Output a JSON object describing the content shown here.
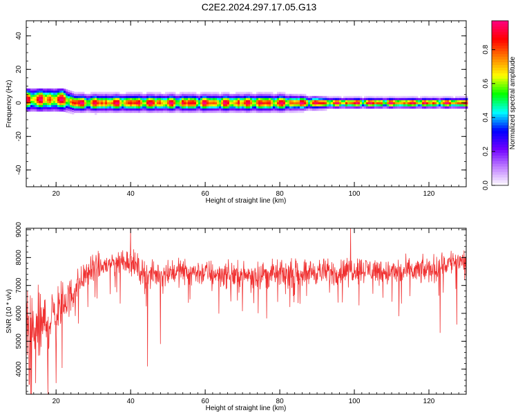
{
  "title": "C2E2.2024.297.17.05.G13",
  "chart_data": [
    {
      "type": "heatmap",
      "xlabel": "Height of straight line (km)",
      "ylabel": "Frequency (Hz)",
      "xlim": [
        12,
        130
      ],
      "ylim": [
        -50,
        49
      ],
      "xticks": [
        20,
        40,
        60,
        80,
        100,
        120
      ],
      "yticks": [
        -40,
        -20,
        0,
        20,
        40
      ],
      "colorbar": {
        "label": "Normalized spectral amplitude",
        "range": [
          0,
          0.97
        ],
        "ticks": [
          "0.0",
          "0.2",
          "0.4",
          "0.6",
          "0.8"
        ],
        "colors": [
          "#ffffff",
          "#c080ff",
          "#7000ff",
          "#0000ff",
          "#00ffff",
          "#00ff00",
          "#ffff00",
          "#ff8000",
          "#ff0000",
          "#ff0080"
        ]
      },
      "ridge": {
        "frequency_hz": [
          [
            12,
            2
          ],
          [
            22,
            2
          ],
          [
            25,
            0
          ],
          [
            130,
            0
          ]
        ],
        "bandwidth_hz": [
          [
            12,
            3.5
          ],
          [
            22,
            3.5
          ],
          [
            25,
            2.5
          ],
          [
            80,
            2.5
          ],
          [
            95,
            1.5
          ],
          [
            130,
            1.5
          ]
        ],
        "peak_amplitude": 0.97
      },
      "grid": false
    },
    {
      "type": "line",
      "xlabel": "Height of straight line (km)",
      "ylabel": "SNR (10 * v/v)",
      "xlim": [
        12,
        130
      ],
      "ylim": [
        3100,
        9050
      ],
      "xticks": [
        20,
        40,
        60,
        80,
        100,
        120
      ],
      "yticks": [
        4000,
        5000,
        6000,
        7000,
        8000,
        9000
      ],
      "series": [
        {
          "color": "#f03030",
          "x": [
            12,
            14,
            16,
            18,
            20,
            21,
            22,
            24,
            26,
            28,
            30,
            32,
            35,
            38,
            40,
            42,
            45,
            48,
            50,
            55,
            60,
            65,
            70,
            75,
            80,
            85,
            90,
            95,
            100,
            105,
            110,
            115,
            120,
            125,
            128,
            130
          ],
          "mean": [
            5400,
            5200,
            5500,
            5700,
            6000,
            6200,
            6400,
            6600,
            7100,
            7400,
            7600,
            7650,
            7800,
            7900,
            7900,
            7600,
            7350,
            7400,
            7500,
            7500,
            7450,
            7400,
            7350,
            7400,
            7400,
            7450,
            7500,
            7450,
            7600,
            7550,
            7450,
            7500,
            7550,
            7800,
            7900,
            7900
          ],
          "spread": [
            1100,
            1300,
            1200,
            1100,
            900,
            850,
            700,
            600,
            500,
            450,
            430,
            420,
            430,
            430,
            430,
            420,
            420,
            420,
            420,
            420,
            420,
            420,
            420,
            420,
            420,
            420,
            420,
            420,
            420,
            420,
            420,
            420,
            420,
            420,
            420,
            420
          ],
          "notable_points": [
            [
              12.8,
              3450
            ],
            [
              14.5,
              3500
            ],
            [
              20,
              3500
            ],
            [
              40,
              9050
            ],
            [
              44.5,
              4100
            ],
            [
              48,
              4900
            ],
            [
              99,
              9050
            ],
            [
              112,
              5900
            ],
            [
              123,
              5300
            ],
            [
              127.5,
              5600
            ]
          ]
        }
      ],
      "grid": false
    }
  ]
}
